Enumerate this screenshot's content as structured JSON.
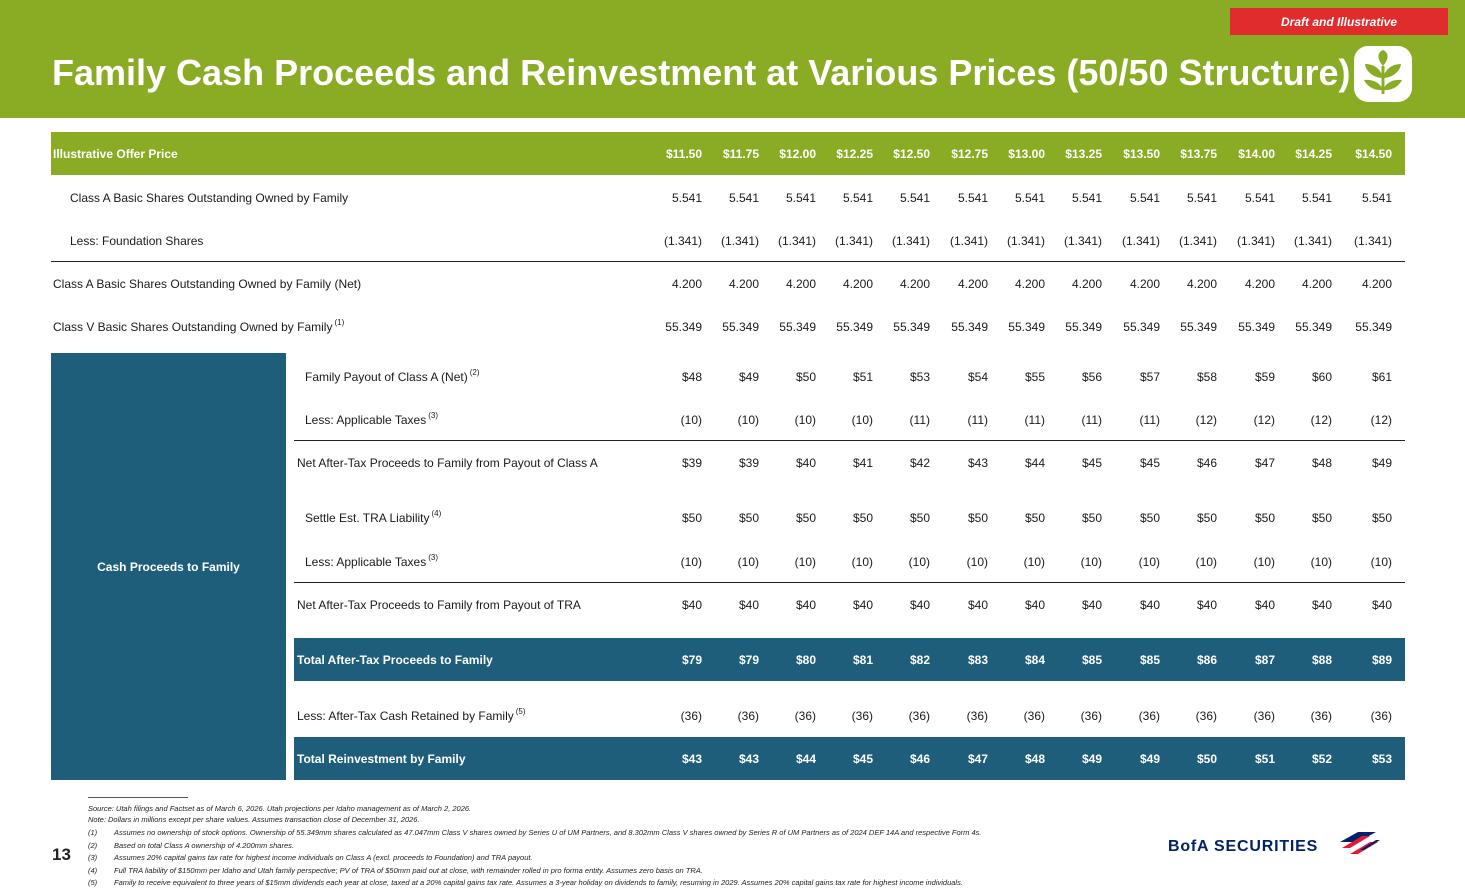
{
  "header": {
    "draft_label": "Draft and Illustrative",
    "title": "Family Cash Proceeds and Reinvestment at Various Prices (50/50 Structure)"
  },
  "colors": {
    "green": "#8aac25",
    "blue": "#1f5e7a",
    "red": "#e02c2c",
    "navy": "#012169"
  },
  "side_label": "Cash Proceeds to Family",
  "rows": [
    {
      "label": "Illustrative Offer Price",
      "values": [
        "$11.50",
        "$11.75",
        "$12.00",
        "$12.25",
        "$12.50",
        "$12.75",
        "$13.00",
        "$13.25",
        "$13.50",
        "$13.75",
        "$14.00",
        "$14.25",
        "$14.50"
      ]
    },
    {
      "label": "Class A Basic Shares Outstanding Owned by Family",
      "values": [
        "5.541",
        "5.541",
        "5.541",
        "5.541",
        "5.541",
        "5.541",
        "5.541",
        "5.541",
        "5.541",
        "5.541",
        "5.541",
        "5.541",
        "5.541"
      ]
    },
    {
      "label": "Less: Foundation Shares",
      "values": [
        "(1.341)",
        "(1.341)",
        "(1.341)",
        "(1.341)",
        "(1.341)",
        "(1.341)",
        "(1.341)",
        "(1.341)",
        "(1.341)",
        "(1.341)",
        "(1.341)",
        "(1.341)",
        "(1.341)"
      ]
    },
    {
      "label": "Class A Basic Shares Outstanding Owned by Family (Net)",
      "values": [
        "4.200",
        "4.200",
        "4.200",
        "4.200",
        "4.200",
        "4.200",
        "4.200",
        "4.200",
        "4.200",
        "4.200",
        "4.200",
        "4.200",
        "4.200"
      ]
    },
    {
      "label": "Class V Basic Shares Outstanding Owned by Family",
      "sup": "(1)",
      "values": [
        "55.349",
        "55.349",
        "55.349",
        "55.349",
        "55.349",
        "55.349",
        "55.349",
        "55.349",
        "55.349",
        "55.349",
        "55.349",
        "55.349",
        "55.349"
      ]
    },
    {
      "label": "Family Payout of Class A (Net)",
      "sup": "(2)",
      "values": [
        "$48",
        "$49",
        "$50",
        "$51",
        "$53",
        "$54",
        "$55",
        "$56",
        "$57",
        "$58",
        "$59",
        "$60",
        "$61"
      ]
    },
    {
      "label": "Less: Applicable Taxes",
      "sup": "(3)",
      "values": [
        "(10)",
        "(10)",
        "(10)",
        "(10)",
        "(11)",
        "(11)",
        "(11)",
        "(11)",
        "(11)",
        "(12)",
        "(12)",
        "(12)",
        "(12)"
      ]
    },
    {
      "label": "Net After-Tax Proceeds to Family from Payout of Class A",
      "values": [
        "$39",
        "$39",
        "$40",
        "$41",
        "$42",
        "$43",
        "$44",
        "$45",
        "$45",
        "$46",
        "$47",
        "$48",
        "$49"
      ]
    },
    {
      "label": "Settle Est. TRA Liability",
      "sup": "(4)",
      "values": [
        "$50",
        "$50",
        "$50",
        "$50",
        "$50",
        "$50",
        "$50",
        "$50",
        "$50",
        "$50",
        "$50",
        "$50",
        "$50"
      ]
    },
    {
      "label": "Less: Applicable Taxes",
      "sup": "(3)",
      "values": [
        "(10)",
        "(10)",
        "(10)",
        "(10)",
        "(10)",
        "(10)",
        "(10)",
        "(10)",
        "(10)",
        "(10)",
        "(10)",
        "(10)",
        "(10)"
      ]
    },
    {
      "label": "Net After-Tax Proceeds to Family from Payout of TRA",
      "values": [
        "$40",
        "$40",
        "$40",
        "$40",
        "$40",
        "$40",
        "$40",
        "$40",
        "$40",
        "$40",
        "$40",
        "$40",
        "$40"
      ]
    },
    {
      "label": "Total After-Tax Proceeds to Family",
      "values": [
        "$79",
        "$79",
        "$80",
        "$81",
        "$82",
        "$83",
        "$84",
        "$85",
        "$85",
        "$86",
        "$87",
        "$88",
        "$89"
      ]
    },
    {
      "label": "Less: After-Tax Cash Retained by Family",
      "sup": "(5)",
      "values": [
        "(36)",
        "(36)",
        "(36)",
        "(36)",
        "(36)",
        "(36)",
        "(36)",
        "(36)",
        "(36)",
        "(36)",
        "(36)",
        "(36)",
        "(36)"
      ]
    },
    {
      "label": "Total Reinvestment by Family",
      "values": [
        "$43",
        "$43",
        "$44",
        "$45",
        "$46",
        "$47",
        "$48",
        "$49",
        "$49",
        "$50",
        "$51",
        "$52",
        "$53"
      ]
    }
  ],
  "footnotes": [
    {
      "n": "",
      "text": "Source: Utah filings and Factset as of March 6, 2026. Utah projections per Idaho management as of March 2, 2026."
    },
    {
      "n": "",
      "text": "Note: Dollars in millions except per share values. Assumes transaction close of December 31, 2026."
    },
    {
      "n": "(1)",
      "text": "Assumes no ownership of stock options. Ownership of 55.349mm shares calculated as 47.047mm Class V shares owned by Series U of UM Partners, and 8.302mm Class V shares owned by Series R of UM Partners as of 2024 DEF 14A and respective Form 4s."
    },
    {
      "n": "(2)",
      "text": "Based on total Class A ownership of 4.200mm shares."
    },
    {
      "n": "(3)",
      "text": "Assumes 20% capital gains tax rate for highest income individuals on Class A (excl. proceeds to Foundation) and TRA payout."
    },
    {
      "n": "(4)",
      "text": "Full TRA liability of $150mm per Idaho and Utah family perspective; PV of TRA of $50mm paid out at close, with remainder rolled in pro forma entity. Assumes zero basis on TRA."
    },
    {
      "n": "(5)",
      "text": "Family to receive equivalent to three years of $15mm dividends each year at close, taxed at a 20% capital gains tax rate. Assumes a 3-year holiday on dividends to family, resuming in 2029. Assumes 20% capital gains tax rate for highest income individuals."
    }
  ],
  "page_number": "13",
  "brand": "BofA SECURITIES"
}
